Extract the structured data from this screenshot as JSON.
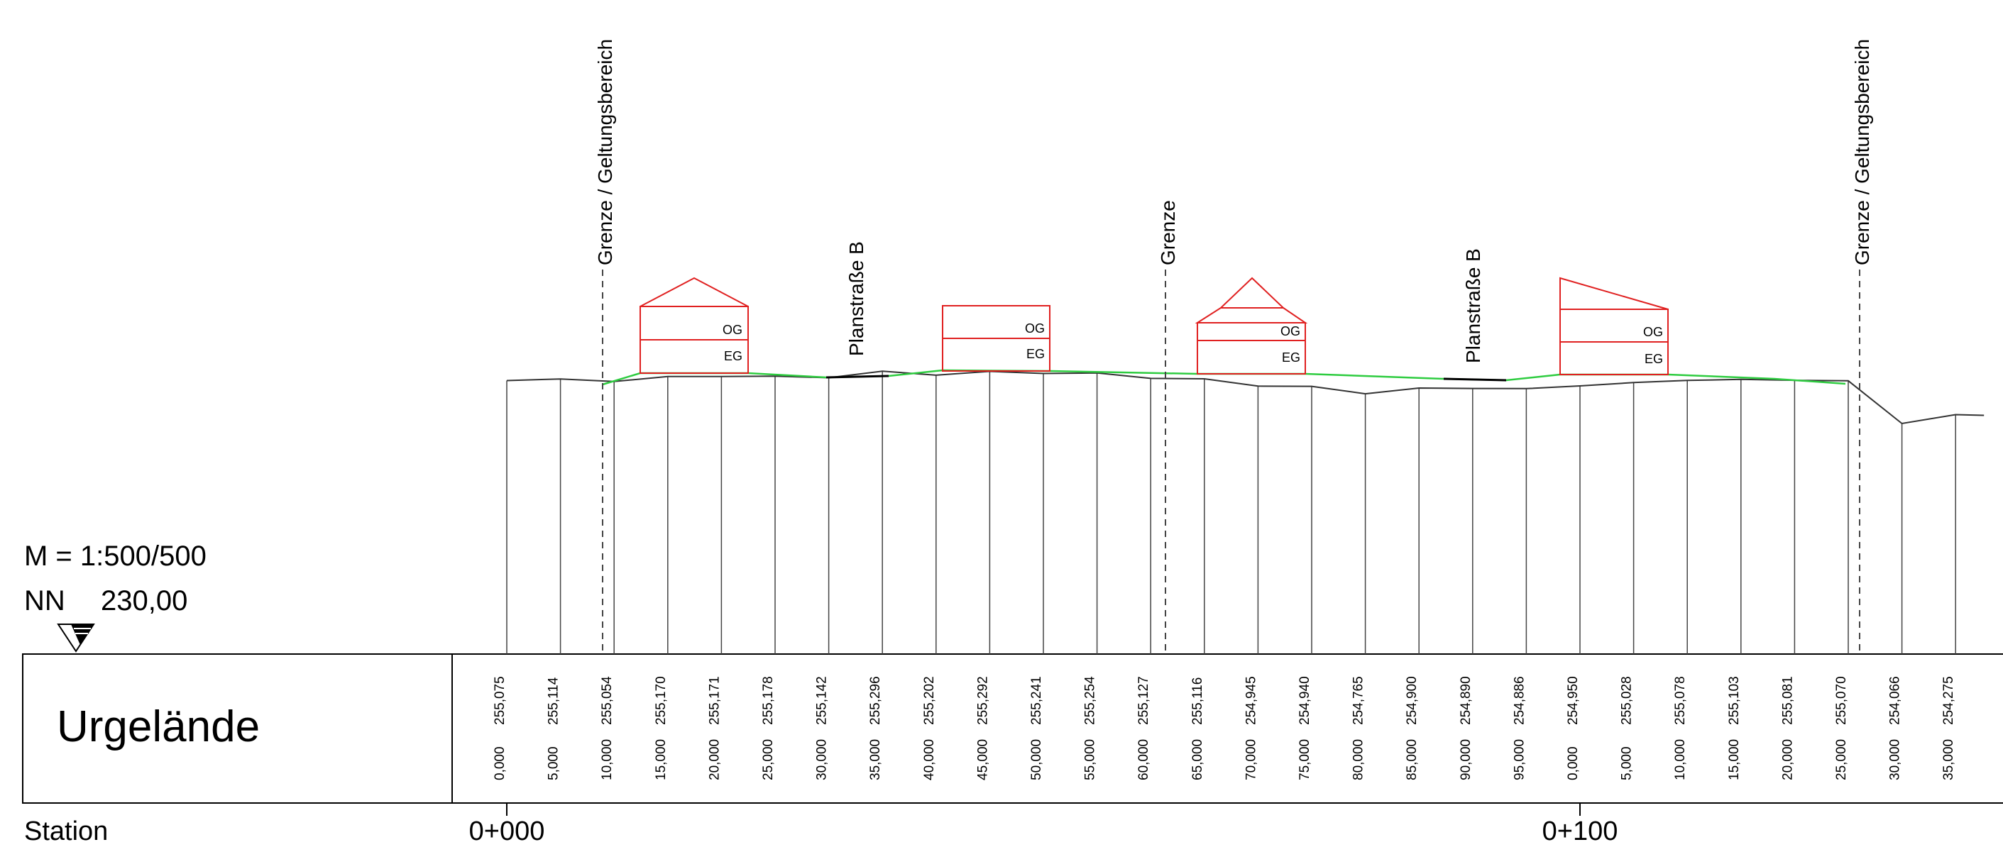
{
  "scale_label": "M = 1:500/500",
  "nn_prefix": "NN",
  "nn_value": "230,00",
  "row_label": "Urgelände",
  "station_label": "Station",
  "station_marks": [
    {
      "label": "0+000",
      "index": 0
    },
    {
      "label": "0+100",
      "index": 20
    }
  ],
  "vertical_markers": [
    {
      "label": "Grenze / Geltungsbereich",
      "between": [
        1,
        2
      ]
    },
    {
      "label": "Grenze",
      "between": [
        12,
        13
      ]
    },
    {
      "label": "Grenze / Geltungsbereich",
      "between": [
        25,
        26
      ]
    }
  ],
  "street_labels": [
    "Planstraße B",
    "Planstraße B"
  ],
  "buildings": [
    {
      "roof": "gable",
      "floors": [
        "OG",
        "EG"
      ]
    },
    {
      "roof": "flat",
      "floors": [
        "OG",
        "EG"
      ]
    },
    {
      "roof": "hip",
      "floors": [
        "OG",
        "EG"
      ]
    },
    {
      "roof": "shed",
      "floors": [
        "OG",
        "EG"
      ]
    }
  ],
  "profile": {
    "datum": 230.0,
    "elevations": [
      "255,075",
      "255,114",
      "255,054",
      "255,170",
      "255,171",
      "255,178",
      "255,142",
      "255,296",
      "255,202",
      "255,292",
      "255,241",
      "255,254",
      "255,127",
      "255,116",
      "254,945",
      "254,940",
      "254,765",
      "254,900",
      "254,890",
      "254,886",
      "254,950",
      "255,028",
      "255,078",
      "255,103",
      "255,081",
      "255,070",
      "254,066",
      "254,275"
    ],
    "stations": [
      "0,000",
      "5,000",
      "10,000",
      "15,000",
      "20,000",
      "25,000",
      "30,000",
      "35,000",
      "40,000",
      "45,000",
      "50,000",
      "55,000",
      "60,000",
      "65,000",
      "70,000",
      "75,000",
      "80,000",
      "85,000",
      "90,000",
      "95,000",
      "0,000",
      "5,000",
      "10,000",
      "15,000",
      "20,000",
      "25,000",
      "30,000",
      "35,000"
    ]
  },
  "colors": {
    "building": "#e02020",
    "planned_terrain": "#2ecc40",
    "existing_terrain": "#333333",
    "frame": "#000000"
  }
}
